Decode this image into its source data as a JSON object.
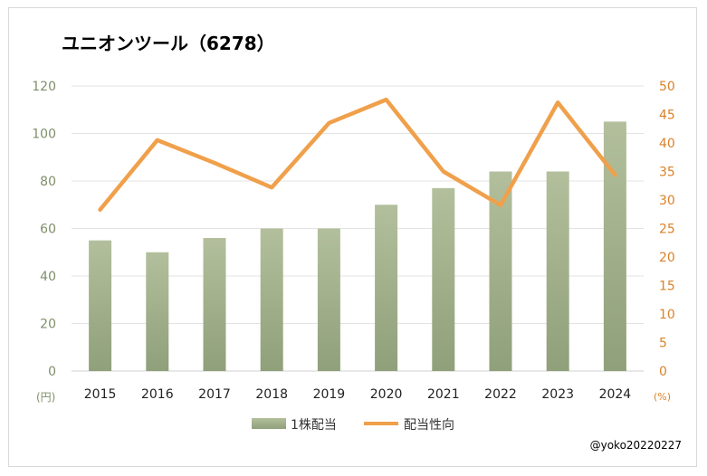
{
  "chart_data": {
    "type": "bar+line",
    "title": "ユニオンツール（6278）",
    "categories": [
      "2015",
      "2016",
      "2017",
      "2018",
      "2019",
      "2020",
      "2021",
      "2022",
      "2023",
      "2024"
    ],
    "series": [
      {
        "name": "1株配当",
        "type": "bar",
        "axis": "left",
        "values": [
          55,
          50,
          56,
          60,
          60,
          70,
          77,
          84,
          84,
          105
        ]
      },
      {
        "name": "配当性向",
        "type": "line",
        "axis": "right",
        "values": [
          28.3,
          40.5,
          36.5,
          32.2,
          43.5,
          47.6,
          35.0,
          29.1,
          47.1,
          34.4
        ]
      }
    ],
    "y_left": {
      "min": 0,
      "max": 120,
      "step": 20,
      "unit": "(円)"
    },
    "y_right": {
      "min": 0,
      "max": 50,
      "step": 5,
      "unit": "(%)"
    },
    "grid": true,
    "legend_position": "bottom",
    "colors": {
      "bar": "#a7b48f",
      "line": "#f0a04b",
      "left_axis_text": "#7f8f6a",
      "right_axis_text": "#d9822b"
    }
  },
  "credit": "@yoko20220227"
}
